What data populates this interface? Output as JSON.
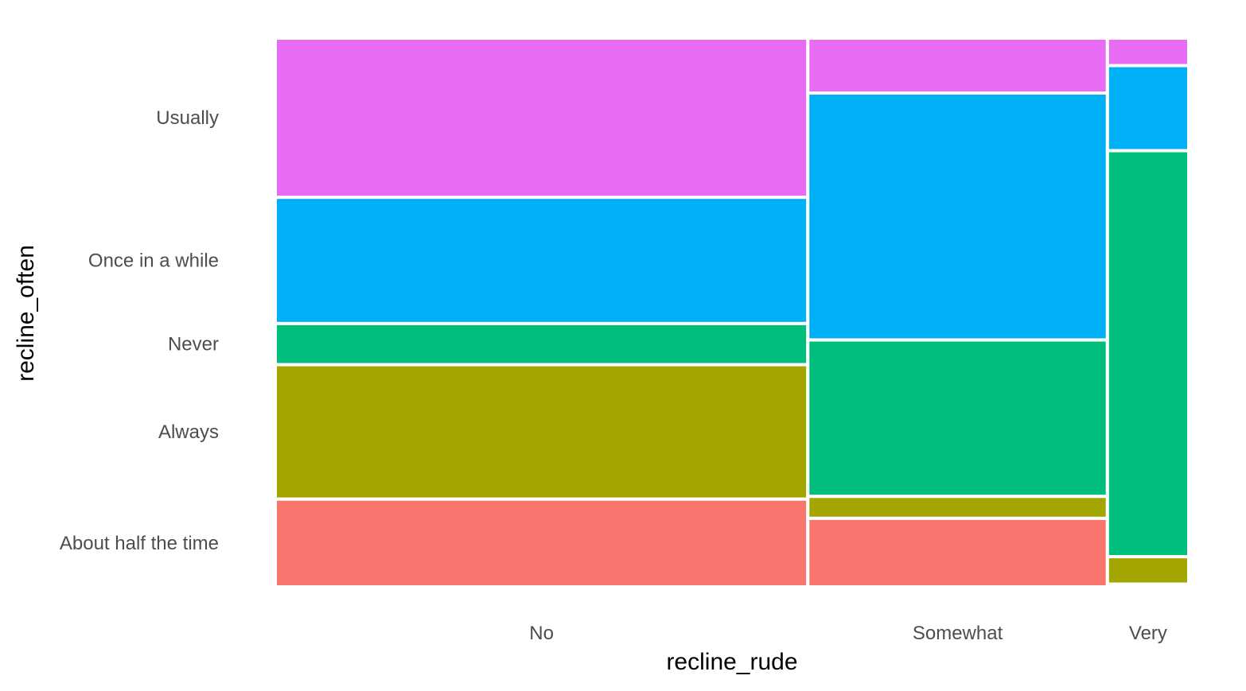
{
  "chart_data": {
    "type": "mosaic",
    "xlabel": "recline_rude",
    "ylabel": "recline_often",
    "x_categories": [
      "No",
      "Somewhat",
      "Very"
    ],
    "x_widths": [
      0.583,
      0.328,
      0.089
    ],
    "fill_categories": [
      "About half the time",
      "Always",
      "Never",
      "Once in a while",
      "Usually"
    ],
    "fill_colors": {
      "About half the time": "#F8766D",
      "Always": "#A3A500",
      "Never": "#00BF7D",
      "Once in a while": "#00B0F6",
      "Usually": "#E76BF3"
    },
    "y_axis_labels": [
      "About half the time",
      "Always",
      "Never",
      "Once in a while",
      "Usually"
    ],
    "columns": [
      {
        "category": "No",
        "proportions": {
          "About half the time": 0.16,
          "Always": 0.245,
          "Never": 0.075,
          "Once in a while": 0.23,
          "Usually": 0.29
        }
      },
      {
        "category": "Somewhat",
        "proportions": {
          "About half the time": 0.125,
          "Always": 0.04,
          "Never": 0.285,
          "Once in a while": 0.45,
          "Usually": 0.1
        }
      },
      {
        "category": "Very",
        "proportions": {
          "About half the time": 0.005,
          "Always": 0.05,
          "Never": 0.74,
          "Once in a while": 0.155,
          "Usually": 0.05
        }
      }
    ],
    "grid": false,
    "legend": "none"
  }
}
